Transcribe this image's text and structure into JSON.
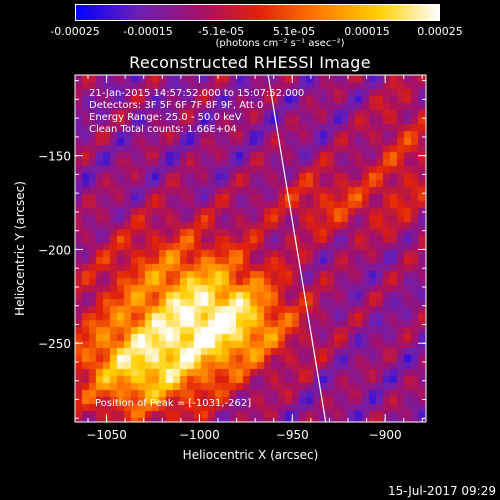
{
  "colorbar": {
    "ticks": [
      "-0.00025",
      "-0.00015",
      "-5.1e-05",
      "5.1e-05",
      "0.00015",
      "0.00025"
    ],
    "unit": "(photons cm⁻² s⁻¹ asec⁻²)"
  },
  "title": "Reconstructed RHESSI Image",
  "info": {
    "time": "21-Jan-2015 14:57:52.000 to 15:07:52.000",
    "detectors": "Detectors: 3F 5F 6F 7F 8F 9F, Att 0",
    "energy": "Energy Range: 25.0 - 50.0 keV",
    "clean": "Clean     Total counts: 1.66E+04",
    "peak": "Position of Peak = [-1031,-262]"
  },
  "footer": "15-Jul-2017 09:29",
  "chart_data": {
    "type": "heatmap",
    "title": "Reconstructed RHESSI Image",
    "xlabel": "Heliocentric X (arcsec)",
    "ylabel": "Heliocentric Y (arcsec)",
    "xlim": [
      -1067,
      -878
    ],
    "ylim": [
      -292,
      -107
    ],
    "xticks": [
      -1050,
      -1000,
      -950,
      -900
    ],
    "yticks": [
      -150,
      -200,
      -250
    ],
    "colorbar_range": [
      -0.00025,
      0.00025
    ],
    "peak": [
      -1031,
      -262
    ],
    "limb_line": [
      [
        -963,
        -107
      ],
      [
        -932,
        -292
      ]
    ],
    "grid": false
  },
  "colors": {
    "colormap": [
      "#0000ff",
      "#6a1fb5",
      "#a0106e",
      "#e0200c",
      "#ff7a00",
      "#ffd000",
      "#ffffff"
    ]
  }
}
